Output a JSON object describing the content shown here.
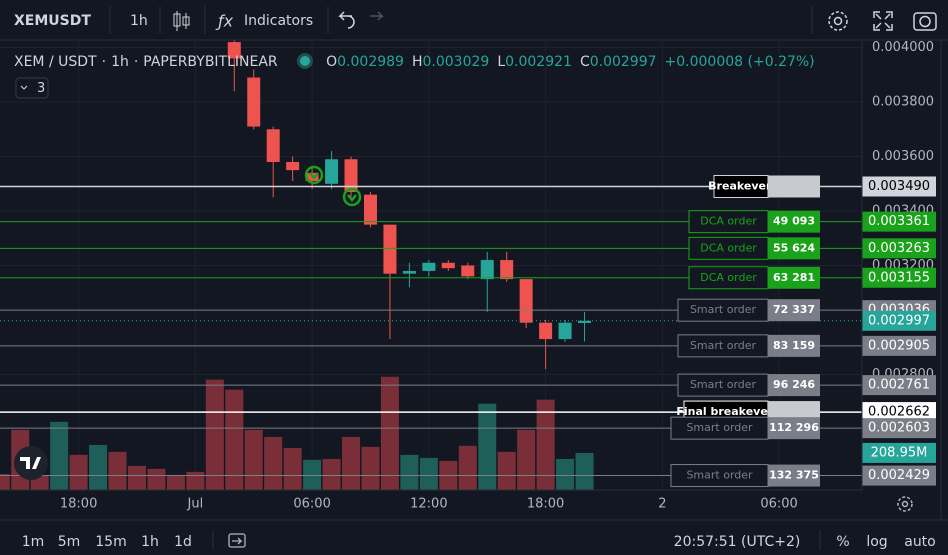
{
  "toolbar": {
    "symbol": "XEMUSDT",
    "interval": "1h",
    "indicators": "Indicators"
  },
  "legend": {
    "pair": "XEM / USDT",
    "interval": "1h",
    "exchange": "PAPERBYBITLINEAR",
    "labels": [
      "O",
      "H",
      "L",
      "C"
    ],
    "change": "+0.000008 (+0.27%)",
    "collapsed_count": "3"
  },
  "chart_data": {
    "type": "candlestick",
    "xlim": [
      -4.04,
      40.26
    ],
    "xticks": [
      {
        "value": 0,
        "label": "18:00"
      },
      {
        "value": 6,
        "label": "Jul"
      },
      {
        "value": 12,
        "label": "06:00"
      },
      {
        "value": 18,
        "label": "12:00"
      },
      {
        "value": 24,
        "label": "18:00"
      },
      {
        "value": 30,
        "label": "2"
      },
      {
        "value": 36,
        "label": "06:00"
      }
    ],
    "ylim": [
      0.002376,
      0.004013
    ],
    "yticks": [
      {
        "value": 0.004,
        "label": "0.004000"
      },
      {
        "value": 0.0038,
        "label": "0.003800"
      },
      {
        "value": 0.0036,
        "label": "0.003600"
      },
      {
        "value": 0.0034,
        "label": "0.003400"
      },
      {
        "value": 0.0032,
        "label": "0.003200"
      },
      {
        "value": 0.0028,
        "label": "0.002800"
      }
    ],
    "grid": true,
    "up_color": "#26a69a",
    "down_color": "#ef5350",
    "candles": {
      "x": [
        8,
        9,
        10,
        11,
        12,
        13,
        14,
        15,
        16,
        17,
        18,
        19,
        20,
        21,
        22,
        23,
        24,
        25,
        26
      ],
      "open": [
        0.00402,
        0.00389,
        0.0037,
        0.00358,
        0.00354,
        0.0035,
        0.00359,
        0.00346,
        0.00335,
        0.00317,
        0.00318,
        0.00321,
        0.0032,
        0.00315,
        0.00322,
        0.00315,
        0.00299,
        0.00293,
        0.002989
      ],
      "high": [
        0.00405,
        0.00392,
        0.00371,
        0.0036,
        0.00356,
        0.00362,
        0.0036,
        0.00347,
        0.00335,
        0.00321,
        0.00322,
        0.00322,
        0.00321,
        0.00325,
        0.00325,
        0.00315,
        0.003,
        0.003,
        0.003029
      ],
      "low": [
        0.00384,
        0.0037,
        0.00345,
        0.00351,
        0.00348,
        0.00348,
        0.00344,
        0.00334,
        0.00293,
        0.00312,
        0.00316,
        0.00318,
        0.00315,
        0.00303,
        0.00314,
        0.00297,
        0.00282,
        0.00292,
        0.002921
      ],
      "close": [
        0.00396,
        0.00371,
        0.00358,
        0.00355,
        0.00351,
        0.00359,
        0.00347,
        0.00335,
        0.00317,
        0.00318,
        0.00321,
        0.00319,
        0.00316,
        0.00322,
        0.00315,
        0.00299,
        0.00293,
        0.00299,
        0.002997
      ]
    },
    "volume": {
      "vlim": [
        0,
        800
      ],
      "x": [
        -4,
        -3,
        -2,
        -1,
        0,
        1,
        2,
        3,
        4,
        5,
        6,
        7,
        8,
        9,
        10,
        11,
        12,
        13,
        14,
        15,
        16,
        17,
        18,
        19,
        20,
        21,
        22,
        23,
        24,
        25,
        26
      ],
      "values": [
        90,
        339,
        85,
        384,
        198,
        254,
        215,
        136,
        119,
        85,
        102,
        622,
        565,
        339,
        299,
        237,
        170,
        175,
        299,
        243,
        638,
        198,
        181,
        164,
        249,
        486,
        215,
        339,
        509,
        175,
        208.95
      ],
      "value_labels": [
        null,
        null,
        null,
        null,
        null,
        null,
        null,
        null,
        null,
        null,
        null,
        null,
        null,
        null,
        null,
        null,
        null,
        null,
        null,
        null,
        null,
        null,
        null,
        null,
        null,
        null,
        null,
        null,
        null,
        null,
        "208.95M"
      ],
      "colors": [
        "#7a2f38",
        "#7a2f38",
        "#7a2f38",
        "#1e5f5a",
        "#7a2f38",
        "#1e5f5a",
        "#7a2f38",
        "#7a2f38",
        "#7a2f38",
        "#7a2f38",
        "#7a2f38",
        "#7a2f38",
        "#7a2f38",
        "#7a2f38",
        "#7a2f38",
        "#7a2f38",
        "#1e5f5a",
        "#7a2f38",
        "#7a2f38",
        "#7a2f38",
        "#7a2f38",
        "#1e5f5a",
        "#1e5f5a",
        "#7a2f38",
        "#7a2f38",
        "#1e5f5a",
        "#7a2f38",
        "#7a2f38",
        "#7a2f38",
        "#1e5f5a",
        "#1e5f5a"
      ]
    },
    "orders": [
      {
        "label": "Breakeven",
        "price": {
          "value": 0.00349,
          "label": "0.003490"
        },
        "color": "#d1d4dc"
      },
      {
        "label": "DCA order",
        "qty": {
          "value": 49093,
          "label": "49 093"
        },
        "price": 0.003361,
        "color": "#1aa31a"
      },
      {
        "label": "DCA order",
        "qty": {
          "value": 55624,
          "label": "55 624"
        },
        "price": 0.003263,
        "color": "#1aa31a"
      },
      {
        "label": "DCA order",
        "qty": {
          "value": 63281,
          "label": "63 281"
        },
        "price": 0.003155,
        "color": "#1aa31a"
      },
      {
        "label": "Smart order",
        "qty": {
          "value": 72337,
          "label": "72 337"
        },
        "price": 0.003036,
        "color": "#7b7e88"
      },
      {
        "label": "Smart order",
        "qty": {
          "value": 83159,
          "label": "83 159"
        },
        "price": 0.002905,
        "color": "#7b7e88"
      },
      {
        "label": "Smart order",
        "qty": {
          "value": 96246,
          "label": "96 246"
        },
        "price": 0.002761,
        "color": "#7b7e88"
      },
      {
        "label": "Final breakeven",
        "price": 0.002662,
        "color": "#ffffff"
      },
      {
        "label": "Smart order",
        "qty": {
          "value": 112296,
          "label": "112 296"
        },
        "price": 0.002603,
        "color": "#7b7e88"
      },
      {
        "label": "Smart order",
        "qty": {
          "value": 132375,
          "label": "132 375"
        },
        "price": 0.002429,
        "color": "#7b7e88"
      }
    ]
  },
  "bottom_bar": {
    "ranges": [
      "1m",
      "5m",
      "15m",
      "1h",
      "1d"
    ],
    "clock": "20:57:51 (UTC+2)",
    "percent": "%",
    "log": "log",
    "auto": "auto"
  }
}
